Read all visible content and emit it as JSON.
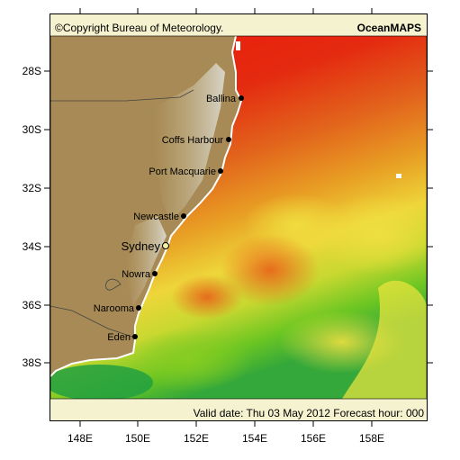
{
  "header": {
    "copyright": "©Copyright Bureau of Meteorology.",
    "product": "OceanMAPS"
  },
  "footer": {
    "valid": "Valid date: Thu 03 May 2012 Forecast hour: 000"
  },
  "axes": {
    "lat_labels": [
      "28S",
      "30S",
      "32S",
      "34S",
      "36S",
      "38S"
    ],
    "lon_labels": [
      "148E",
      "150E",
      "152E",
      "154E",
      "156E",
      "158E"
    ]
  },
  "cities": [
    {
      "name": "Ballina"
    },
    {
      "name": "Coffs Harbour"
    },
    {
      "name": "Port Macquarie"
    },
    {
      "name": "Newcastle"
    },
    {
      "name": "Sydney"
    },
    {
      "name": "Nowra"
    },
    {
      "name": "Narooma"
    },
    {
      "name": "Eden"
    }
  ],
  "colors": {
    "land": "#a78a55",
    "land_high": "#d8d8d0",
    "sea_warm": "#e81c0c",
    "sea_mid": "#e8a020",
    "sea_yellow": "#f0e03a",
    "sea_green": "#7cc820",
    "sea_deep": "#1aa04a",
    "panel": "#f5f3cf"
  }
}
